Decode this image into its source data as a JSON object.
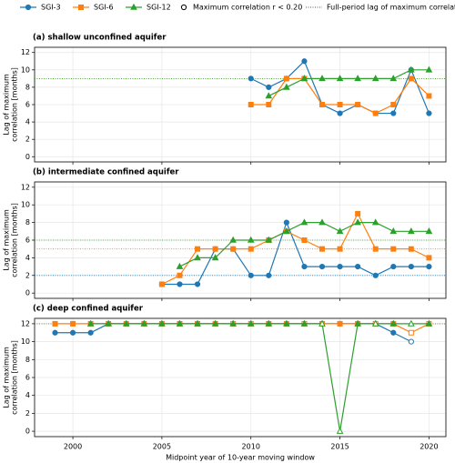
{
  "legend_extra": [
    "Maximum correlation r < 0.20",
    "Full-period lag of maximum correlation"
  ],
  "chart_data": [
    {
      "type": "line",
      "title": "(a) shallow unconfined aquifer",
      "ylabel": [
        "Lag of maximum",
        "correlation [months]"
      ],
      "x": [
        1999,
        2000,
        2001,
        2002,
        2003,
        2004,
        2005,
        2006,
        2007,
        2008,
        2009,
        2010,
        2011,
        2012,
        2013,
        2014,
        2015,
        2016,
        2017,
        2018,
        2019,
        2020
      ],
      "xlim": [
        1997.85,
        2020.95
      ],
      "xticks": [
        2000,
        2005,
        2010,
        2015,
        2020
      ],
      "ylim": [
        -0.6,
        12.6
      ],
      "yticks": [
        0,
        2,
        4,
        6,
        8,
        10,
        12
      ],
      "grid": true,
      "series": [
        {
          "name": "SGI-3",
          "color": "#1f77b4",
          "marker": "circle",
          "full_period": 9,
          "hollow": [],
          "values": [
            null,
            null,
            null,
            null,
            null,
            null,
            null,
            null,
            null,
            null,
            null,
            9,
            8,
            9,
            11,
            6,
            5,
            6,
            5,
            5,
            10,
            5
          ]
        },
        {
          "name": "SGI-6",
          "color": "#ff7f0e",
          "marker": "square",
          "full_period": 9,
          "hollow": [],
          "values": [
            null,
            null,
            null,
            null,
            null,
            null,
            null,
            null,
            null,
            null,
            null,
            6,
            6,
            9,
            9,
            6,
            6,
            6,
            5,
            6,
            9,
            7
          ]
        },
        {
          "name": "SGI-12",
          "color": "#2ca02c",
          "marker": "triangle",
          "full_period": 9,
          "hollow": [],
          "values": [
            null,
            null,
            null,
            null,
            null,
            null,
            null,
            null,
            null,
            null,
            null,
            null,
            7,
            8,
            9,
            9,
            9,
            9,
            9,
            9,
            10,
            10
          ]
        }
      ]
    },
    {
      "type": "line",
      "title": "(b) intermediate confined aquifer",
      "ylabel": [
        "Lag of maximum",
        "correlation [months]"
      ],
      "x": [
        1999,
        2000,
        2001,
        2002,
        2003,
        2004,
        2005,
        2006,
        2007,
        2008,
        2009,
        2010,
        2011,
        2012,
        2013,
        2014,
        2015,
        2016,
        2017,
        2018,
        2019,
        2020
      ],
      "xlim": [
        1997.85,
        2020.95
      ],
      "xticks": [
        2000,
        2005,
        2010,
        2015,
        2020
      ],
      "ylim": [
        -0.6,
        12.6
      ],
      "yticks": [
        0,
        2,
        4,
        6,
        8,
        10,
        12
      ],
      "grid": true,
      "series": [
        {
          "name": "SGI-3",
          "color": "#1f77b4",
          "marker": "circle",
          "full_period": 2,
          "hollow": [],
          "values": [
            null,
            null,
            null,
            null,
            null,
            null,
            1,
            1,
            1,
            5,
            5,
            2,
            2,
            8,
            3,
            3,
            3,
            3,
            2,
            3,
            3,
            3
          ]
        },
        {
          "name": "SGI-6",
          "color": "#ff7f0e",
          "marker": "square",
          "full_period": 5,
          "hollow": [],
          "values": [
            null,
            null,
            null,
            null,
            null,
            null,
            1,
            2,
            5,
            5,
            5,
            5,
            6,
            7,
            6,
            5,
            5,
            9,
            5,
            5,
            5,
            4
          ]
        },
        {
          "name": "SGI-12",
          "color": "#2ca02c",
          "marker": "triangle",
          "full_period": 6,
          "hollow": [],
          "values": [
            null,
            null,
            null,
            null,
            null,
            null,
            null,
            3,
            4,
            4,
            6,
            6,
            6,
            7,
            8,
            8,
            7,
            8,
            8,
            7,
            7,
            7
          ]
        }
      ]
    },
    {
      "type": "line",
      "title": "(c) deep confined aquifer",
      "ylabel": [
        "Lag of maximum",
        "correlation [months]"
      ],
      "xlabel": "Midpoint year of 10-year moving window",
      "x": [
        1999,
        2000,
        2001,
        2002,
        2003,
        2004,
        2005,
        2006,
        2007,
        2008,
        2009,
        2010,
        2011,
        2012,
        2013,
        2014,
        2015,
        2016,
        2017,
        2018,
        2019,
        2020
      ],
      "xlim": [
        1997.85,
        2020.95
      ],
      "xticks": [
        2000,
        2005,
        2010,
        2015,
        2020
      ],
      "ylim": [
        -0.6,
        12.6
      ],
      "yticks": [
        0,
        2,
        4,
        6,
        8,
        10,
        12
      ],
      "grid": true,
      "series": [
        {
          "name": "SGI-3",
          "color": "#1f77b4",
          "marker": "circle",
          "full_period": 12,
          "hollow": [
            6,
            8,
            17,
            18,
            20
          ],
          "values": [
            11,
            11,
            11,
            12,
            12,
            12,
            12,
            12,
            12,
            12,
            12,
            12,
            12,
            12,
            12,
            12,
            12,
            12,
            12,
            11,
            10,
            null
          ]
        },
        {
          "name": "SGI-6",
          "color": "#ff7f0e",
          "marker": "square",
          "full_period": 12,
          "hollow": [
            10,
            11,
            14,
            18,
            20,
            21
          ],
          "values": [
            12,
            12,
            12,
            12,
            12,
            12,
            12,
            12,
            12,
            12,
            12,
            12,
            12,
            12,
            12,
            12,
            12,
            12,
            12,
            12,
            11,
            12
          ]
        },
        {
          "name": "SGI-12",
          "color": "#2ca02c",
          "marker": "triangle",
          "full_period": 12,
          "hollow": [
            15,
            16,
            18,
            20
          ],
          "values": [
            null,
            null,
            12,
            12,
            12,
            12,
            12,
            12,
            12,
            12,
            12,
            12,
            12,
            12,
            12,
            12,
            0,
            12,
            12,
            12,
            12,
            12
          ]
        }
      ]
    }
  ]
}
